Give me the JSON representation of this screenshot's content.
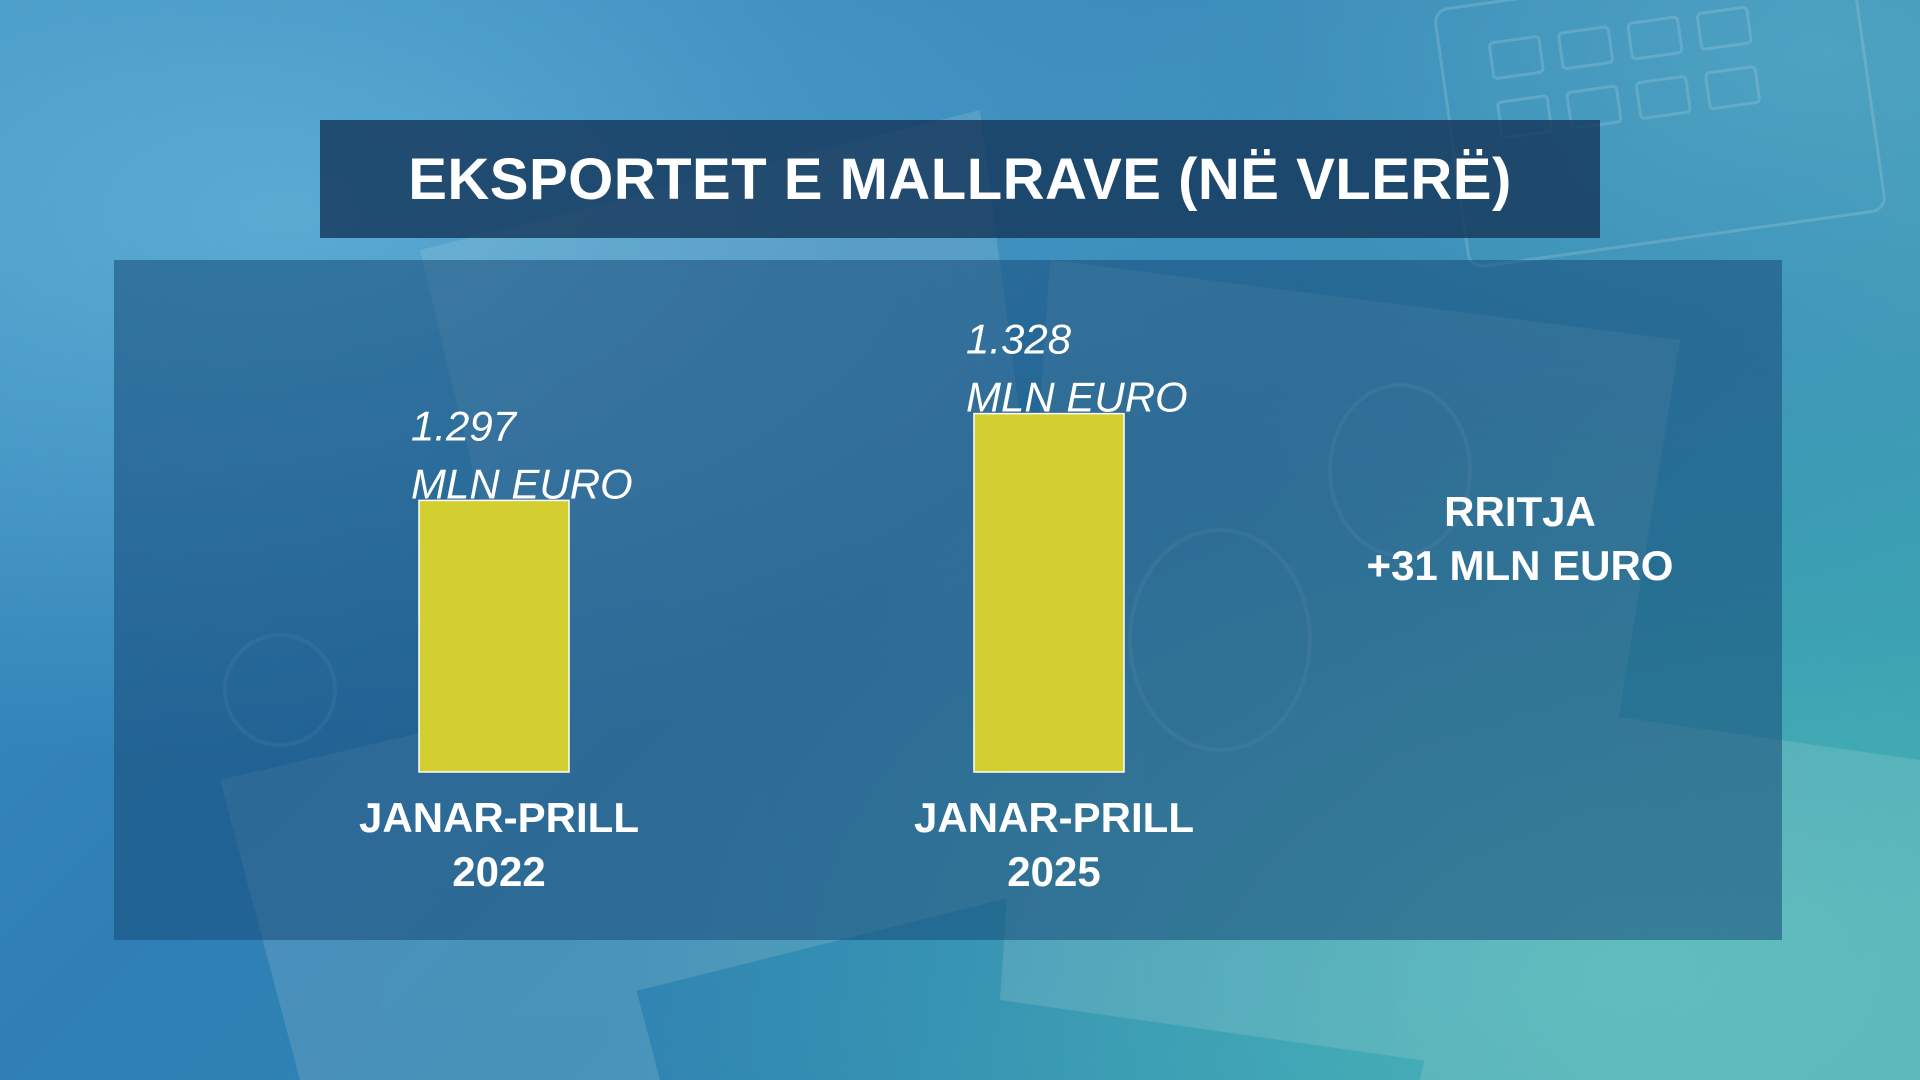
{
  "title": "EKSPORTET E MALLRAVE (NË VLERË)",
  "growth": {
    "line1": "RRITJA",
    "line2": "+31 MLN EURO"
  },
  "chart_data": {
    "type": "bar",
    "categories": [
      [
        "JANAR-PRILL",
        "2022"
      ],
      [
        "JANAR-PRILL",
        "2025"
      ]
    ],
    "values": [
      1297,
      1328
    ],
    "value_labels": [
      [
        "1.297",
        "MLN EURO"
      ],
      [
        "1.328",
        "MLN EURO"
      ]
    ],
    "unit": "MLN EURO",
    "bar_color": "#d3cf31",
    "title": "EKSPORTET E MALLRAVE (NË VLERË)",
    "xlabel": "",
    "ylabel": ""
  }
}
